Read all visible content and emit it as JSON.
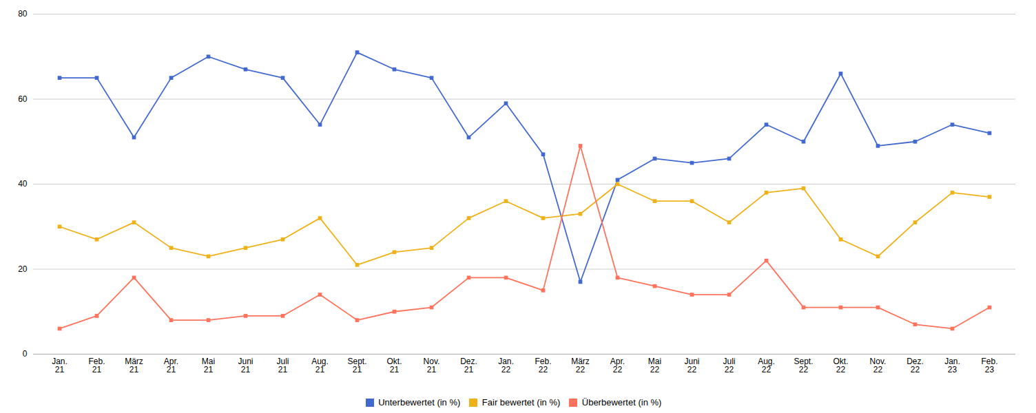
{
  "chart_data": {
    "type": "line",
    "categories": [
      "Jan.\n21",
      "Feb.\n21",
      "März\n21",
      "Apr.\n21",
      "Mai\n21",
      "Juni\n21",
      "Juli\n21",
      "Aug.\n21",
      "Sept.\n21",
      "Okt.\n21",
      "Nov.\n21",
      "Dez.\n21",
      "Jan.\n22",
      "Feb.\n22",
      "März\n22",
      "Apr.\n22",
      "Mai\n22",
      "Juni\n22",
      "Juli\n22",
      "Aug.\n22",
      "Sept.\n22",
      "Okt.\n22",
      "Nov.\n22",
      "Dez.\n22",
      "Jan.\n23",
      "Feb.\n23"
    ],
    "series": [
      {
        "name": "Unterbewertet (in %)",
        "values": [
          65,
          65,
          51,
          65,
          70,
          67,
          65,
          54,
          71,
          67,
          65,
          51,
          59,
          47,
          17,
          41,
          46,
          45,
          46,
          54,
          50,
          66,
          49,
          50,
          54,
          52
        ]
      },
      {
        "name": "Fair bewertet (in %)",
        "values": [
          30,
          27,
          31,
          25,
          23,
          25,
          27,
          32,
          21,
          24,
          25,
          32,
          36,
          32,
          33,
          40,
          36,
          36,
          31,
          38,
          39,
          27,
          23,
          31,
          38,
          37
        ]
      },
      {
        "name": "Überbewertet (in %)",
        "values": [
          6,
          9,
          18,
          8,
          8,
          9,
          9,
          14,
          8,
          10,
          11,
          18,
          18,
          15,
          49,
          18,
          16,
          14,
          14,
          22,
          11,
          11,
          11,
          7,
          6,
          11
        ]
      }
    ],
    "ylim": [
      0,
      80
    ],
    "yticks": [
      0,
      20,
      40,
      60,
      80
    ],
    "grid": true,
    "legend": "bottom",
    "marker": "square"
  }
}
